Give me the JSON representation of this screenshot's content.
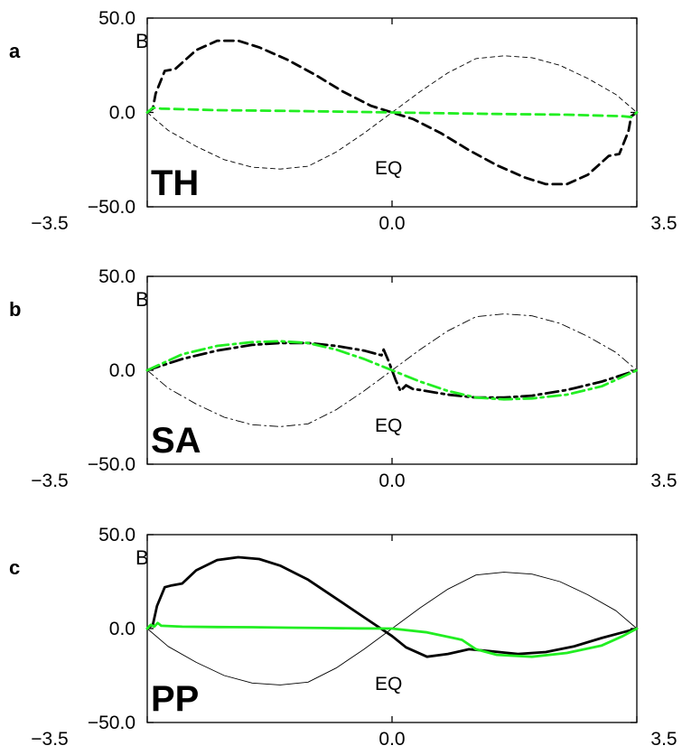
{
  "chart_data": [
    {
      "type": "line",
      "panel": "a",
      "corner_label": "B",
      "label": "TH",
      "annotation": "EQ",
      "xlim": [
        -3.5,
        3.5
      ],
      "ylim": [
        -50.0,
        50.0
      ],
      "xticks": [
        "-3.5",
        "0.0",
        "3.5"
      ],
      "yticks": [
        "50.0",
        "0.0",
        "-50.0"
      ],
      "line_style": "dashed",
      "series": [
        {
          "color": "#000000",
          "width": "thin",
          "x": [
            -3.5,
            -3.2,
            -2.8,
            -2.4,
            -2.0,
            -1.6,
            -1.2,
            -0.8,
            -0.4,
            0.0,
            0.4,
            0.8,
            1.2,
            1.6,
            2.0,
            2.4,
            2.8,
            3.2,
            3.5
          ],
          "y": [
            0,
            -9.5,
            -18,
            -25,
            -29,
            -30,
            -28.5,
            -21,
            -11,
            0,
            11,
            21,
            28.5,
            30,
            29,
            25,
            18,
            9.5,
            0
          ]
        },
        {
          "color": "#000000",
          "width": "thick",
          "x": [
            -3.5,
            -3.42,
            -3.38,
            -3.25,
            -3.1,
            -2.8,
            -2.5,
            -2.2,
            -1.9,
            -1.5,
            -1.1,
            -0.7,
            -0.3,
            0.0,
            0.3,
            0.7,
            1.1,
            1.5,
            1.9,
            2.2,
            2.5,
            2.8,
            3.1,
            3.25,
            3.38,
            3.42,
            3.5
          ],
          "y": [
            0,
            2,
            10,
            22,
            23,
            33,
            38,
            38,
            34.5,
            28,
            20,
            11,
            3.5,
            0,
            -3.5,
            -11,
            -20,
            -28,
            -34.5,
            -38,
            -38,
            -33,
            -23,
            -22,
            -10,
            -2,
            0
          ]
        },
        {
          "color": "#22ee22",
          "width": "thick",
          "x": [
            -3.5,
            -3.42,
            -3.3,
            -2.5,
            -1.5,
            -0.5,
            0.0,
            0.5,
            1.5,
            2.5,
            3.3,
            3.42,
            3.5
          ],
          "y": [
            0,
            2.5,
            2,
            1.2,
            0.8,
            0.3,
            0,
            -0.3,
            -0.8,
            -1.2,
            -2,
            -2.5,
            0
          ]
        }
      ]
    },
    {
      "type": "line",
      "panel": "b",
      "corner_label": "B",
      "label": "SA",
      "annotation": "EQ",
      "xlim": [
        -3.5,
        3.5
      ],
      "ylim": [
        -50.0,
        50.0
      ],
      "xticks": [
        "-3.5",
        "0.0",
        "3.5"
      ],
      "yticks": [
        "50.0",
        "0.0",
        "-50.0"
      ],
      "line_style": "dash-dot",
      "series": [
        {
          "color": "#000000",
          "width": "thin",
          "x": [
            -3.5,
            -3.2,
            -2.8,
            -2.4,
            -2.0,
            -1.6,
            -1.2,
            -0.8,
            -0.4,
            0.0,
            0.4,
            0.8,
            1.2,
            1.6,
            2.0,
            2.4,
            2.8,
            3.2,
            3.5
          ],
          "y": [
            0,
            -9.5,
            -18,
            -25,
            -29,
            -30,
            -28.5,
            -21,
            -11,
            0,
            11,
            21,
            28.5,
            30,
            29,
            25,
            18,
            9.5,
            0
          ]
        },
        {
          "color": "#000000",
          "width": "thick",
          "x": [
            -3.5,
            -3.0,
            -2.5,
            -2.0,
            -1.6,
            -1.2,
            -0.8,
            -0.4,
            -0.15,
            -0.12,
            -0.05,
            0.0,
            0.05,
            0.12,
            0.2,
            0.3,
            0.4,
            0.8,
            1.2,
            1.6,
            2.0,
            2.5,
            3.0,
            3.5
          ],
          "y": [
            0,
            6,
            10.5,
            13.5,
            14.5,
            14.5,
            13,
            10.5,
            8,
            11,
            5,
            0,
            -5,
            -11,
            -8,
            -10,
            -10.5,
            -13,
            -14.5,
            -14.5,
            -13.5,
            -10.5,
            -6,
            0
          ]
        },
        {
          "color": "#22ee22",
          "width": "thick",
          "x": [
            -3.5,
            -3.0,
            -2.5,
            -2.0,
            -1.6,
            -1.2,
            -0.8,
            -0.4,
            0.0,
            0.4,
            0.8,
            1.2,
            1.6,
            2.0,
            2.5,
            3.0,
            3.5
          ],
          "y": [
            0,
            8.5,
            13,
            15,
            15.5,
            14.5,
            11,
            6,
            0,
            -6,
            -11,
            -14.5,
            -15.5,
            -15,
            -13,
            -8.5,
            0
          ]
        }
      ]
    },
    {
      "type": "line",
      "panel": "c",
      "corner_label": "B",
      "label": "PP",
      "annotation": "EQ",
      "xlim": [
        -3.5,
        3.5
      ],
      "ylim": [
        -50.0,
        50.0
      ],
      "xticks": [
        "-3.5",
        "0.0",
        "3.5"
      ],
      "yticks": [
        "50.0",
        "0.0",
        "-50.0"
      ],
      "line_style": "solid",
      "series": [
        {
          "color": "#000000",
          "width": "thin",
          "x": [
            -3.5,
            -3.2,
            -2.8,
            -2.4,
            -2.0,
            -1.6,
            -1.2,
            -0.8,
            -0.4,
            0.0,
            0.4,
            0.8,
            1.2,
            1.6,
            2.0,
            2.4,
            2.8,
            3.2,
            3.5
          ],
          "y": [
            0,
            -9.5,
            -18,
            -25,
            -29,
            -30,
            -28.5,
            -21,
            -11,
            0,
            11,
            21,
            28.5,
            30,
            29,
            25,
            18,
            9.5,
            0
          ]
        },
        {
          "color": "#000000",
          "width": "thick",
          "x": [
            -3.5,
            -3.42,
            -3.36,
            -3.25,
            -3.15,
            -3.0,
            -2.8,
            -2.5,
            -2.2,
            -1.9,
            -1.6,
            -1.2,
            -0.8,
            -0.4,
            0.0,
            0.2,
            0.5,
            0.8,
            1.1,
            1.4,
            1.8,
            2.2,
            2.6,
            3.0,
            3.3,
            3.5
          ],
          "y": [
            0,
            2,
            12,
            22,
            23,
            24,
            31,
            36.5,
            38,
            37,
            33.5,
            26,
            16,
            6,
            -4,
            -10,
            -15,
            -13.5,
            -11,
            -12,
            -13.5,
            -12.5,
            -9.5,
            -5,
            -2,
            0
          ]
        },
        {
          "color": "#22ee22",
          "width": "thick",
          "x": [
            -3.5,
            -3.45,
            -3.4,
            -3.35,
            -3.3,
            -3.0,
            -2.5,
            -2.0,
            -1.5,
            -1.0,
            -0.5,
            0.0,
            0.5,
            1.0,
            1.2,
            1.5,
            2.0,
            2.5,
            3.0,
            3.3,
            3.5
          ],
          "y": [
            0,
            2,
            1,
            3,
            1.5,
            1,
            0.8,
            0.7,
            0.5,
            0.3,
            0.1,
            0,
            -2,
            -6,
            -11,
            -14,
            -15,
            -13,
            -9,
            -4,
            0
          ]
        }
      ]
    }
  ]
}
